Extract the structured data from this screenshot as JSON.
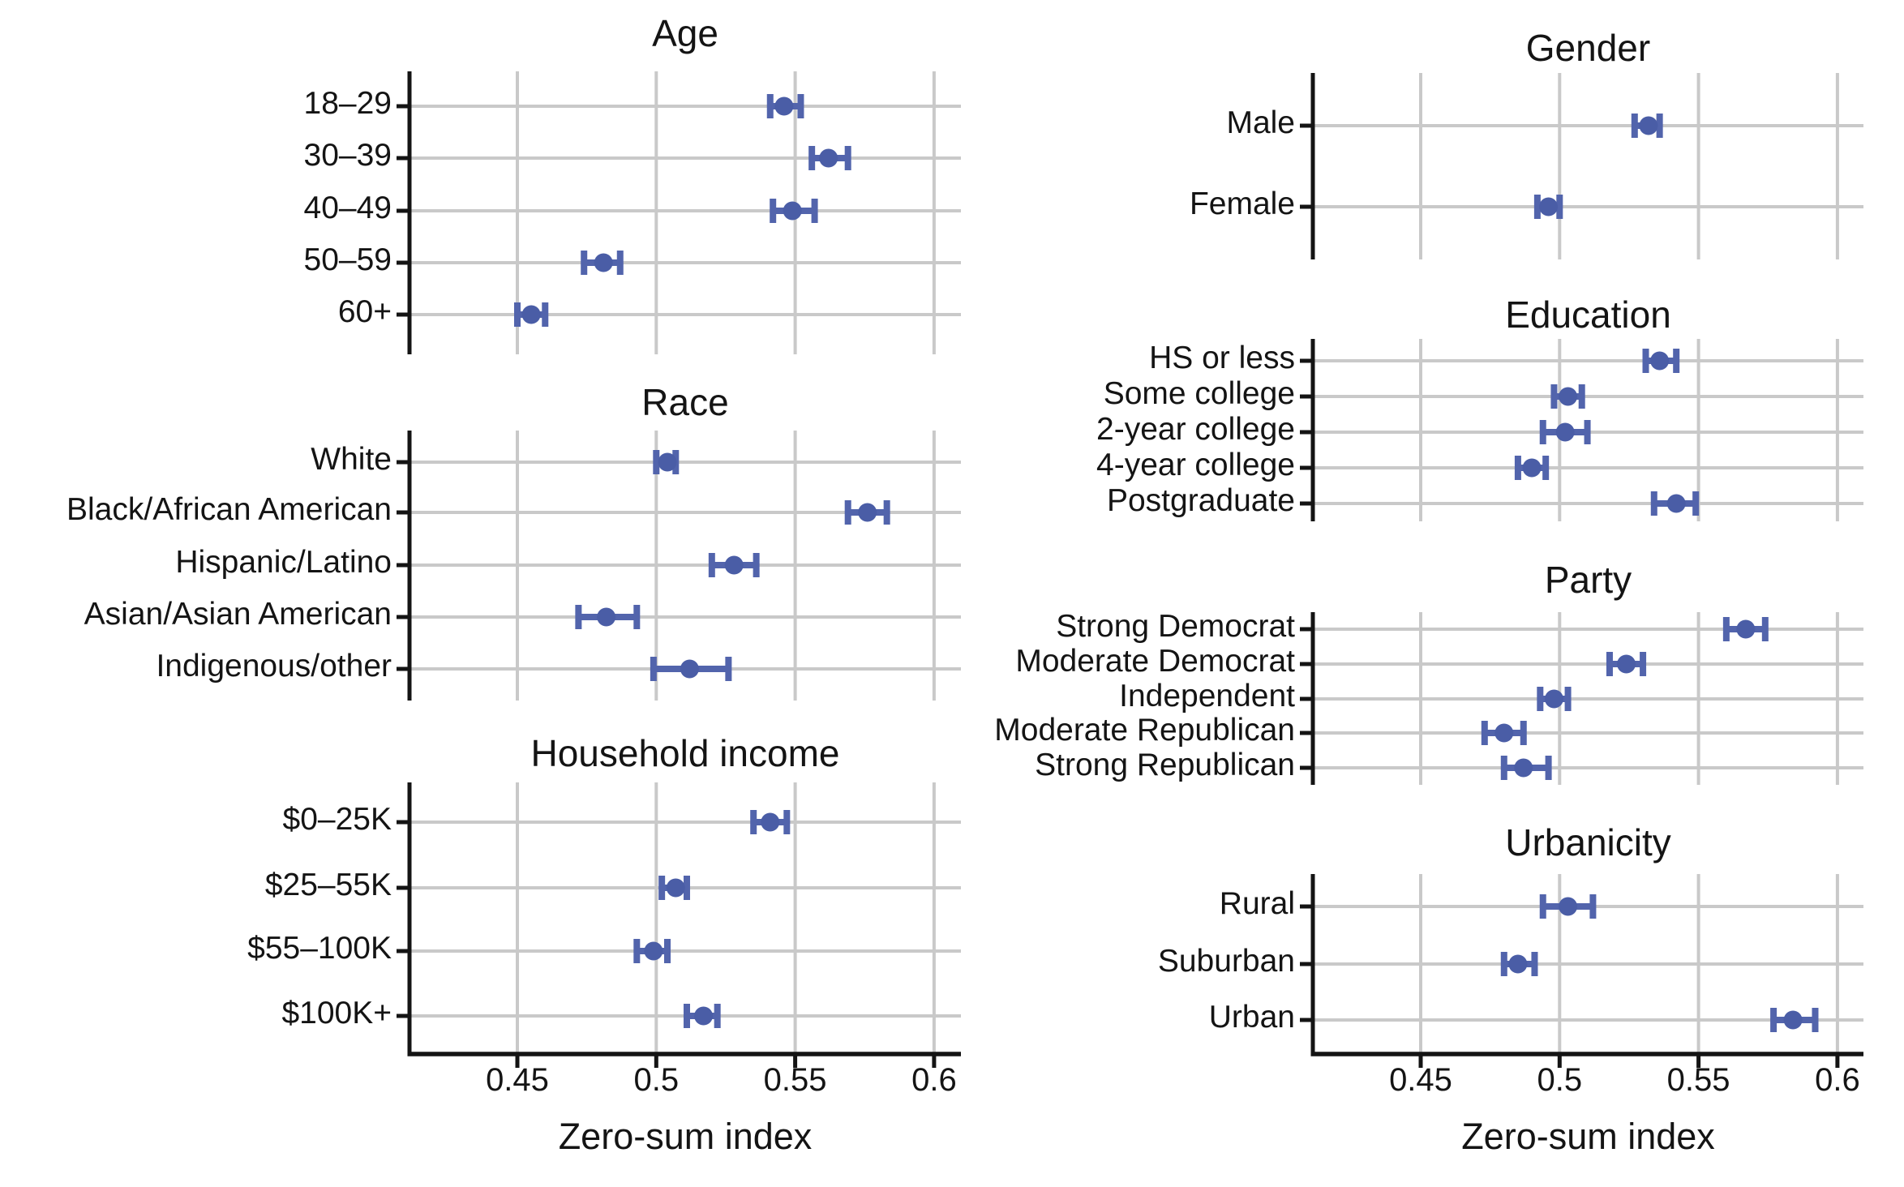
{
  "figure": {
    "xlabel": "Zero-sum index"
  },
  "colors": {
    "errorbar": "#5264ac",
    "point": "#4a5da6",
    "gridline": "#c9c9c9",
    "axis": "#141414",
    "text": "#141414",
    "background": "#ffffff"
  },
  "chart_data": {
    "type": "dot-whisker",
    "xlabel": "Zero-sum index",
    "x_ticks": [
      0.45,
      0.5,
      0.55,
      0.6
    ],
    "x_tick_labels": [
      "0.45",
      "0.5",
      "0.55",
      "0.6"
    ],
    "x_range": [
      0.411,
      0.61
    ],
    "grid": true,
    "legend": "none",
    "panels": [
      {
        "title": "Age",
        "column": "left",
        "rows": [
          {
            "label": "18–29",
            "value": 0.546,
            "ci_low": 0.541,
            "ci_high": 0.552
          },
          {
            "label": "30–39",
            "value": 0.562,
            "ci_low": 0.556,
            "ci_high": 0.569
          },
          {
            "label": "40–49",
            "value": 0.549,
            "ci_low": 0.542,
            "ci_high": 0.557
          },
          {
            "label": "50–59",
            "value": 0.481,
            "ci_low": 0.474,
            "ci_high": 0.487
          },
          {
            "label": "60+",
            "value": 0.455,
            "ci_low": 0.45,
            "ci_high": 0.46
          }
        ]
      },
      {
        "title": "Race",
        "column": "left",
        "rows": [
          {
            "label": "White",
            "value": 0.504,
            "ci_low": 0.5,
            "ci_high": 0.507
          },
          {
            "label": "Black/African American",
            "value": 0.576,
            "ci_low": 0.569,
            "ci_high": 0.583
          },
          {
            "label": "Hispanic/Latino",
            "value": 0.528,
            "ci_low": 0.52,
            "ci_high": 0.536
          },
          {
            "label": "Asian/Asian American",
            "value": 0.482,
            "ci_low": 0.472,
            "ci_high": 0.493
          },
          {
            "label": "Indigenous/other",
            "value": 0.512,
            "ci_low": 0.499,
            "ci_high": 0.526
          }
        ]
      },
      {
        "title": "Household income",
        "column": "left",
        "bottom_axis": true,
        "rows": [
          {
            "label": "$0–25K",
            "value": 0.541,
            "ci_low": 0.535,
            "ci_high": 0.547
          },
          {
            "label": "$25–55K",
            "value": 0.507,
            "ci_low": 0.502,
            "ci_high": 0.511
          },
          {
            "label": "$55–100K",
            "value": 0.499,
            "ci_low": 0.493,
            "ci_high": 0.504
          },
          {
            "label": "$100K+",
            "value": 0.517,
            "ci_low": 0.511,
            "ci_high": 0.522
          }
        ]
      },
      {
        "title": "Gender",
        "column": "right",
        "rows": [
          {
            "label": "Male",
            "value": 0.532,
            "ci_low": 0.527,
            "ci_high": 0.536
          },
          {
            "label": "Female",
            "value": 0.496,
            "ci_low": 0.492,
            "ci_high": 0.5
          }
        ]
      },
      {
        "title": "Education",
        "column": "right",
        "rows": [
          {
            "label": "HS or less",
            "value": 0.536,
            "ci_low": 0.531,
            "ci_high": 0.542
          },
          {
            "label": "Some college",
            "value": 0.503,
            "ci_low": 0.498,
            "ci_high": 0.508
          },
          {
            "label": "2-year college",
            "value": 0.502,
            "ci_low": 0.494,
            "ci_high": 0.51
          },
          {
            "label": "4-year college",
            "value": 0.49,
            "ci_low": 0.485,
            "ci_high": 0.495
          },
          {
            "label": "Postgraduate",
            "value": 0.542,
            "ci_low": 0.534,
            "ci_high": 0.549
          }
        ]
      },
      {
        "title": "Party",
        "column": "right",
        "rows": [
          {
            "label": "Strong Democrat",
            "value": 0.567,
            "ci_low": 0.56,
            "ci_high": 0.574
          },
          {
            "label": "Moderate Democrat",
            "value": 0.524,
            "ci_low": 0.518,
            "ci_high": 0.53
          },
          {
            "label": "Independent",
            "value": 0.498,
            "ci_low": 0.493,
            "ci_high": 0.503
          },
          {
            "label": "Moderate Republican",
            "value": 0.48,
            "ci_low": 0.473,
            "ci_high": 0.487
          },
          {
            "label": "Strong Republican",
            "value": 0.487,
            "ci_low": 0.48,
            "ci_high": 0.496
          }
        ]
      },
      {
        "title": "Urbanicity",
        "column": "right",
        "bottom_axis": true,
        "rows": [
          {
            "label": "Rural",
            "value": 0.503,
            "ci_low": 0.494,
            "ci_high": 0.512
          },
          {
            "label": "Suburban",
            "value": 0.485,
            "ci_low": 0.48,
            "ci_high": 0.491
          },
          {
            "label": "Urban",
            "value": 0.584,
            "ci_low": 0.577,
            "ci_high": 0.592
          }
        ]
      }
    ]
  }
}
